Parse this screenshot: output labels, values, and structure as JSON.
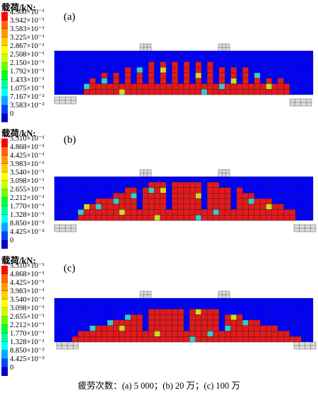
{
  "legend_title": "载荷/kN:",
  "panels": [
    {
      "tag": "(a)",
      "levels": [
        "4.300×10⁻¹",
        "3.942×10⁻¹",
        "3.583×10⁻¹",
        "3.225×10⁻¹",
        "2.867×10⁻¹",
        "2.508×10⁻¹",
        "2.150×10⁻¹",
        "1.792×10⁻¹",
        "1.433×10⁻¹",
        "1.075×10⁻¹",
        "7.167×10⁻²",
        "3.583×10⁻²",
        "0"
      ]
    },
    {
      "tag": "(b)",
      "levels": [
        "5.310×10⁻¹",
        "4.868×10⁻¹",
        "4.425×10⁻¹",
        "3.983×10⁻¹",
        "3.540×10⁻¹",
        "3.098×10⁻¹",
        "2.655×10⁻¹",
        "2.212×10⁻¹",
        "1.770×10⁻¹",
        "1.328×10⁻¹",
        "8.850×10⁻²",
        "4.425×10⁻²",
        "0"
      ]
    },
    {
      "tag": "(c)",
      "levels": [
        "5.310×10⁻¹",
        "4.868×10⁻¹",
        "4.425×10⁻¹",
        "3.983×10⁻¹",
        "3.540×10⁻¹",
        "3.098×10⁻¹",
        "2.655×10⁻¹",
        "2.212×10⁻¹",
        "1.770×10⁻¹",
        "1.328×10⁻¹",
        "8.850×10⁻²",
        "4.425×10⁻²",
        "0"
      ]
    }
  ],
  "legend_colors": [
    "#ff0000",
    "#ff6600",
    "#ff9900",
    "#ffcc00",
    "#ffff00",
    "#ccff00",
    "#66ff00",
    "#00ff33",
    "#00ff99",
    "#00ffff",
    "#00aaff",
    "#0044ff",
    "#0000cc"
  ],
  "beam_colors": {
    "base": "#0000ff",
    "red": "#e31a1c",
    "cyan": "#33cccc",
    "lightblue": "#3399ff",
    "yellow": "#ccdd22",
    "grid": "#222222",
    "support": "#dddddd"
  },
  "caption": "疲劳次数：(a) 5 000；(b) 20 万；(c) 100 万"
}
